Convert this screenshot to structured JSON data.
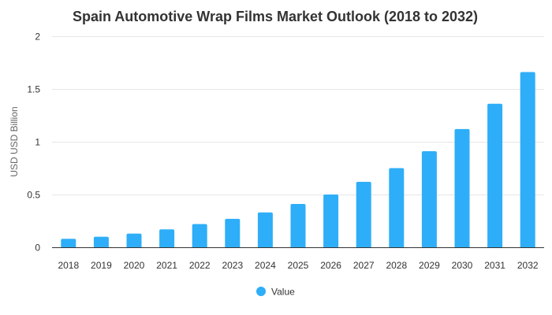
{
  "chart_data": {
    "type": "bar",
    "title": "Spain Automotive Wrap Films Market Outlook (2018 to 2032)",
    "xlabel": "",
    "ylabel": "USD USD Billion",
    "categories": [
      "2018",
      "2019",
      "2020",
      "2021",
      "2022",
      "2023",
      "2024",
      "2025",
      "2026",
      "2027",
      "2028",
      "2029",
      "2030",
      "2031",
      "2032"
    ],
    "series": [
      {
        "name": "Value",
        "color": "#2EAEF8",
        "values": [
          0.08,
          0.1,
          0.13,
          0.17,
          0.22,
          0.27,
          0.33,
          0.41,
          0.5,
          0.62,
          0.75,
          0.91,
          1.12,
          1.36,
          1.66
        ]
      }
    ],
    "ylim": [
      0,
      2
    ],
    "yticks": [
      "0",
      "0.5",
      "1",
      "1.5",
      "2"
    ],
    "grid": true,
    "legend": "bottom-center"
  }
}
